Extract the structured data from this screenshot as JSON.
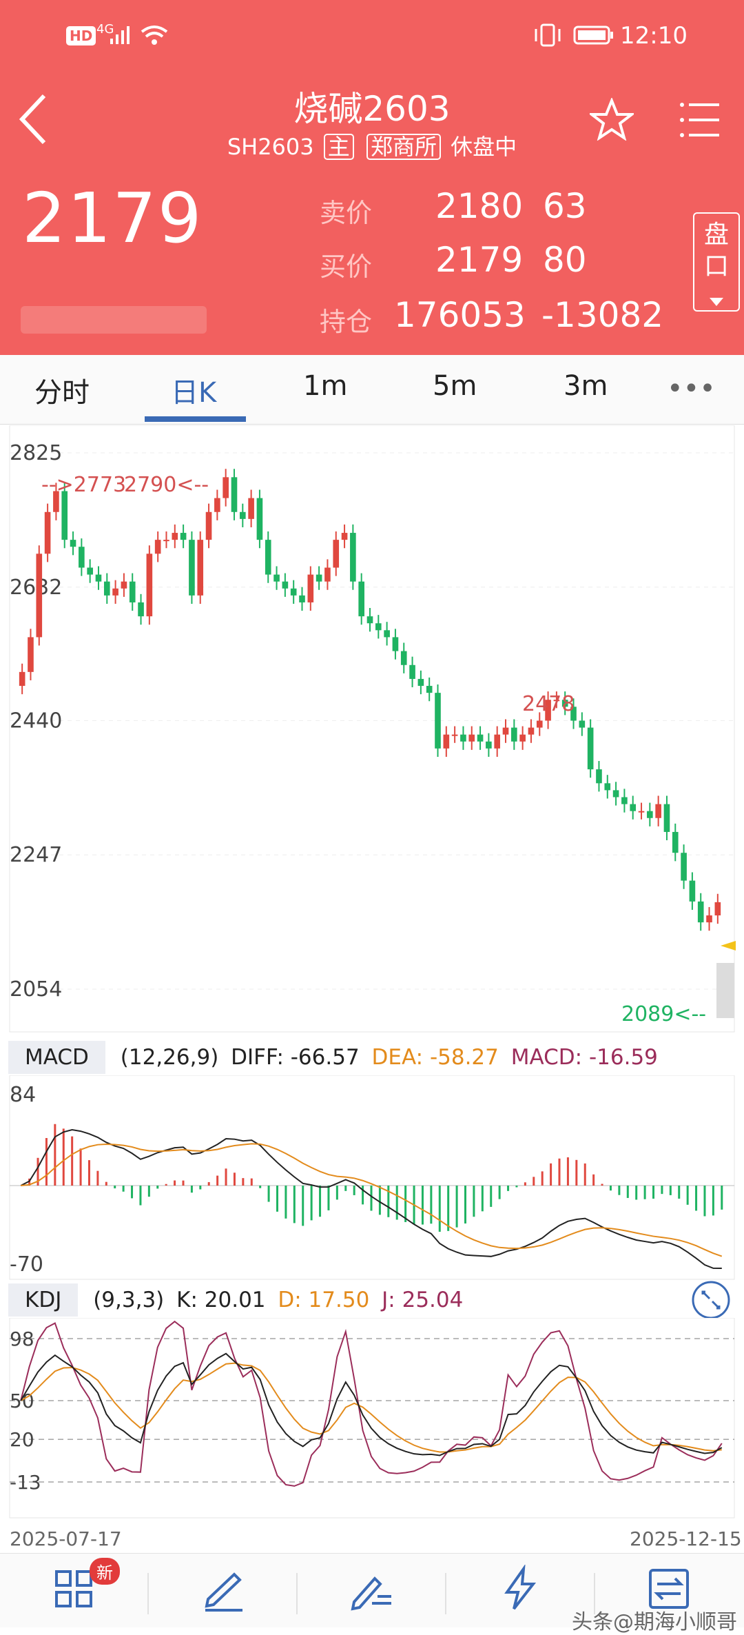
{
  "status_bar": {
    "hd": "HD",
    "net": "4G",
    "time": "12:10"
  },
  "header": {
    "title": "烧碱2603",
    "code": "SH2603",
    "tag_main": "主",
    "tag_exchange": "郑商所",
    "status": "休盘中",
    "last_price": "2179",
    "ask_label": "卖价",
    "ask_price": "2180",
    "ask_vol": "63",
    "bid_label": "买价",
    "bid_price": "2179",
    "bid_vol": "80",
    "oi_label": "持仓",
    "oi_value": "176053",
    "oi_change": "-13082",
    "pankou_label": "盘口"
  },
  "tabs": [
    "分时",
    "日K",
    "1m",
    "5m",
    "3m"
  ],
  "active_tab": "日K",
  "kline": {
    "y_ticks": [
      "2825",
      "2632",
      "2440",
      "2247",
      "2054"
    ],
    "annotations": {
      "high_left": "-->2773",
      "high_right": "2790<--",
      "mid_high": "2478",
      "low": "2089<--"
    },
    "closes": [
      2510,
      2560,
      2680,
      2740,
      2770,
      2700,
      2690,
      2660,
      2650,
      2640,
      2620,
      2630,
      2640,
      2610,
      2590,
      2680,
      2700,
      2700,
      2710,
      2700,
      2620,
      2700,
      2740,
      2760,
      2790,
      2740,
      2730,
      2760,
      2700,
      2650,
      2640,
      2630,
      2620,
      2610,
      2650,
      2640,
      2660,
      2700,
      2710,
      2640,
      2590,
      2580,
      2570,
      2560,
      2540,
      2520,
      2500,
      2490,
      2480,
      2400,
      2420,
      2420,
      2410,
      2420,
      2410,
      2400,
      2420,
      2430,
      2410,
      2420,
      2430,
      2440,
      2470,
      2470,
      2460,
      2440,
      2430,
      2370,
      2350,
      2340,
      2330,
      2320,
      2310,
      2310,
      2300,
      2320,
      2280,
      2250,
      2210,
      2180,
      2150,
      2160,
      2179
    ],
    "colors": {
      "up": "#e0483f",
      "down": "#1fb362",
      "bg": "#ffffff"
    }
  },
  "macd": {
    "name": "MACD",
    "params": "(12,26,9)",
    "diff": "DIFF: -66.57",
    "dea": "DEA: -58.27",
    "macd": "MACD: -16.59",
    "y_top": "84",
    "y_bottom": "-70",
    "colors": {
      "diff": "#222222",
      "dea": "#e38b1c",
      "macd": "#9b2d5a"
    }
  },
  "kdj": {
    "name": "KDJ",
    "params": "(9,3,3)",
    "k": "K: 20.01",
    "d": "D: 17.50",
    "j": "J: 25.04",
    "levels": [
      "98",
      "50",
      "20",
      "-13"
    ],
    "colors": {
      "k": "#222222",
      "d": "#e38b1c",
      "j": "#9b2d5a"
    }
  },
  "dates": {
    "start": "2025-07-17",
    "end": "2025-12-15"
  },
  "nav": {
    "new_badge": "新"
  },
  "watermark": "头条@期海小顺哥"
}
